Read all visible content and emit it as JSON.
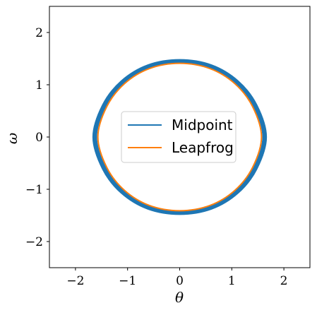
{
  "chart_data": {
    "type": "line",
    "title": "",
    "xlabel": "θ",
    "ylabel": "ω",
    "xlim": [
      -2.5,
      2.5
    ],
    "ylim": [
      -2.5,
      2.5
    ],
    "xticks": [
      -2,
      -1,
      0,
      1,
      2
    ],
    "yticks": [
      -2,
      -1,
      0,
      1,
      2
    ],
    "xtick_labels": [
      "−2",
      "−1",
      "0",
      "1",
      "2"
    ],
    "ytick_labels": [
      "−2",
      "−1",
      "0",
      "1",
      "2"
    ],
    "grid": false,
    "legend_position": "center",
    "series": [
      {
        "name": "Midpoint",
        "color": "#1f77b4",
        "description_points": {
          "theta_range": [
            -1.67,
            1.67
          ],
          "omega_range": [
            -1.48,
            1.48
          ],
          "band_theta": [
            1.6,
            1.67
          ],
          "band_omega": [
            1.42,
            1.48
          ]
        },
        "x": [
          0.0,
          0.6,
          1.1,
          1.45,
          1.63,
          1.45,
          1.1,
          0.6,
          0.0,
          -0.6,
          -1.1,
          -1.45,
          -1.63,
          -1.45,
          -1.1,
          -0.6,
          0.0
        ],
        "y": [
          1.45,
          1.35,
          1.05,
          0.6,
          0.0,
          -0.6,
          -1.05,
          -1.35,
          -1.45,
          -1.35,
          -1.05,
          -0.6,
          0.0,
          0.6,
          1.05,
          1.35,
          1.45
        ]
      },
      {
        "name": "Leapfrog",
        "color": "#ff7f0e",
        "x": [
          0.0,
          0.58,
          1.06,
          1.4,
          1.57,
          1.4,
          1.06,
          0.58,
          0.0,
          -0.58,
          -1.06,
          -1.4,
          -1.57,
          -1.4,
          -1.06,
          -0.58,
          0.0
        ],
        "y": [
          1.41,
          1.31,
          1.02,
          0.58,
          0.0,
          -0.58,
          -1.02,
          -1.31,
          -1.41,
          -1.31,
          -1.02,
          -0.58,
          0.0,
          0.58,
          1.02,
          1.31,
          1.41
        ]
      }
    ]
  }
}
